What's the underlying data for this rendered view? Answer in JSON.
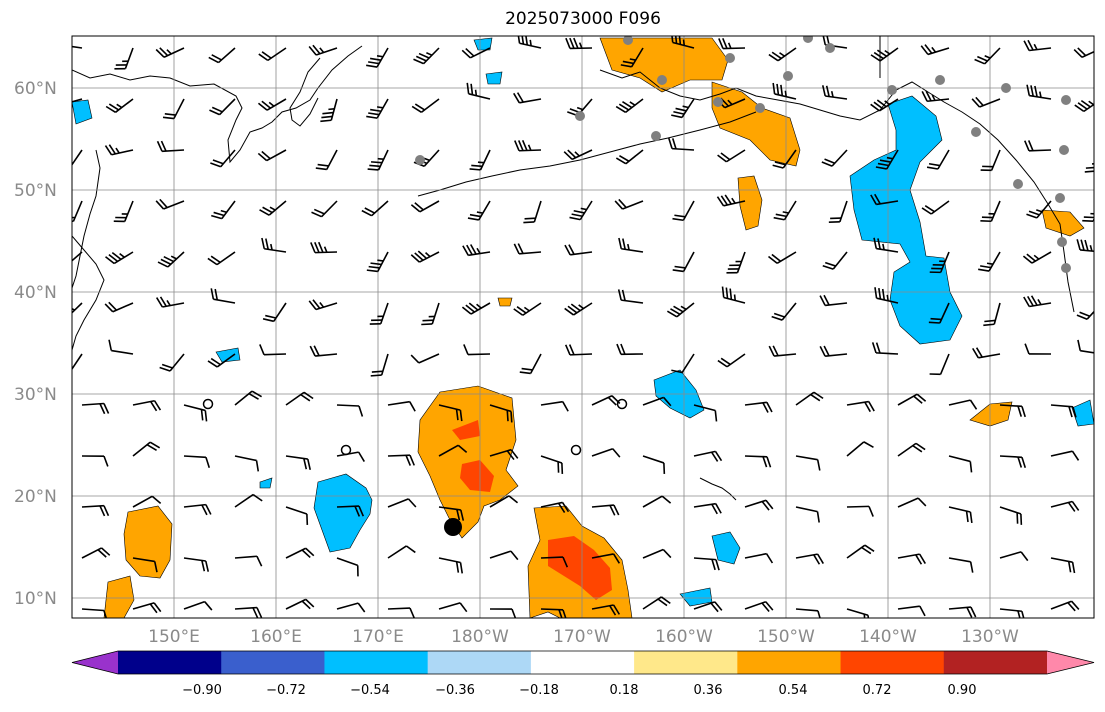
{
  "title": "2025073000 F096",
  "map": {
    "projection": "cylindrical",
    "lat_labels": [
      "60°N",
      "50°N",
      "40°N",
      "30°N",
      "20°N",
      "10°N"
    ],
    "lon_labels": [
      "150°E",
      "160°E",
      "170°E",
      "180°W",
      "170°W",
      "160°W",
      "150°W",
      "140°W",
      "130°W"
    ],
    "gridlines": true,
    "fill_colors": {
      "positive_weak": "#ffe88a",
      "positive_mid": "#ffa500",
      "positive_strong": "#ff4500",
      "negative_mid": "#00bfff",
      "negative_weak": "#add8f6",
      "station": "#808080",
      "center_marker": "#000000"
    }
  },
  "colorbar": {
    "tick_labels": [
      "−0.90",
      "−0.72",
      "−0.54",
      "−0.36",
      "−0.18",
      "0.18",
      "0.36",
      "0.54",
      "0.72",
      "0.90"
    ],
    "colors": [
      "#9932cc",
      "#00008b",
      "#3a5fcd",
      "#00bfff",
      "#add8f6",
      "#ffffff",
      "#ffe88a",
      "#ffa500",
      "#ff4500",
      "#b22222",
      "#ff88aa"
    ],
    "extend": "both"
  }
}
